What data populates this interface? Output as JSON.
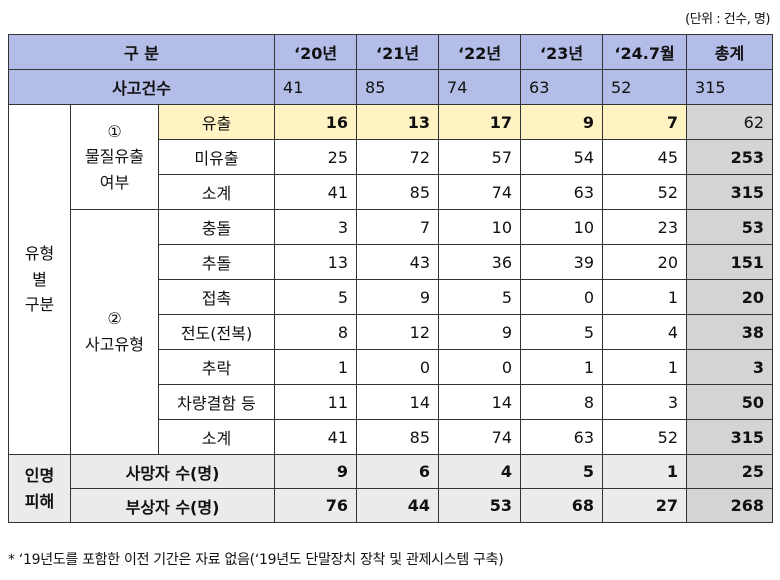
{
  "unit_note": "(단위 : 건수, 명)",
  "header": {
    "category": "구    분",
    "years": [
      "‘20년",
      "‘21년",
      "‘22년",
      "‘23년",
      "‘24.7월"
    ],
    "total": "총계"
  },
  "accidents": {
    "label": "사고건수",
    "values": [
      "41",
      "85",
      "74",
      "63",
      "52"
    ],
    "total": "315"
  },
  "group_label": "유형\n별\n구분",
  "leak": {
    "label": "①\n물질유출\n여부",
    "rows": [
      {
        "label": "유출",
        "values": [
          "16",
          "13",
          "17",
          "9",
          "7"
        ],
        "total": "62"
      },
      {
        "label": "미유출",
        "values": [
          "25",
          "72",
          "57",
          "54",
          "45"
        ],
        "total": "253"
      },
      {
        "label": "소계",
        "values": [
          "41",
          "85",
          "74",
          "63",
          "52"
        ],
        "total": "315"
      }
    ]
  },
  "type": {
    "label": "②\n사고유형",
    "rows": [
      {
        "label": "충돌",
        "values": [
          "3",
          "7",
          "10",
          "10",
          "23"
        ],
        "total": "53"
      },
      {
        "label": "추돌",
        "values": [
          "13",
          "43",
          "36",
          "39",
          "20"
        ],
        "total": "151"
      },
      {
        "label": "접촉",
        "values": [
          "5",
          "9",
          "5",
          "0",
          "1"
        ],
        "total": "20"
      },
      {
        "label": "전도(전복)",
        "values": [
          "8",
          "12",
          "9",
          "5",
          "4"
        ],
        "total": "38"
      },
      {
        "label": "추락",
        "values": [
          "1",
          "0",
          "0",
          "1",
          "1"
        ],
        "total": "3"
      },
      {
        "label": "차량결함 등",
        "values": [
          "11",
          "14",
          "14",
          "8",
          "3"
        ],
        "total": "50"
      },
      {
        "label": "소계",
        "values": [
          "41",
          "85",
          "74",
          "63",
          "52"
        ],
        "total": "315"
      }
    ]
  },
  "casualty": {
    "label": "인명\n피해",
    "rows": [
      {
        "label": "사망자 수(명)",
        "values": [
          "9",
          "6",
          "4",
          "5",
          "1"
        ],
        "total": "25"
      },
      {
        "label": "부상자 수(명)",
        "values": [
          "76",
          "44",
          "53",
          "68",
          "27"
        ],
        "total": "268"
      }
    ]
  },
  "footnote": "* ‘19년도를 포함한 이전 기간은 자료 없음(‘19년도 단말장치 장착 및 관제시스템 구축)"
}
